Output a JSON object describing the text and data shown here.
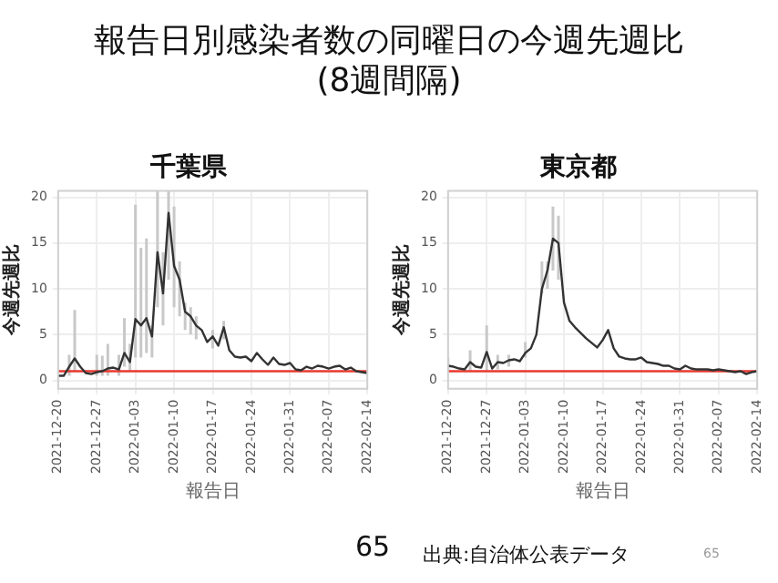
{
  "chart_data": [
    {
      "type": "other",
      "title": "報告日別感染者数の同曜日の今週先週比",
      "subtitle": "(8週間隔)"
    },
    {
      "type": "line",
      "title": "千葉県",
      "xlabel": "報告日",
      "ylabel": "今週先週比",
      "x": [
        "2021-12-20",
        "2021-12-21",
        "2021-12-22",
        "2021-12-23",
        "2021-12-24",
        "2021-12-25",
        "2021-12-26",
        "2021-12-27",
        "2021-12-28",
        "2021-12-29",
        "2021-12-30",
        "2021-12-31",
        "2022-01-01",
        "2022-01-02",
        "2022-01-03",
        "2022-01-04",
        "2022-01-05",
        "2022-01-06",
        "2022-01-07",
        "2022-01-08",
        "2022-01-09",
        "2022-01-10",
        "2022-01-11",
        "2022-01-12",
        "2022-01-13",
        "2022-01-14",
        "2022-01-15",
        "2022-01-16",
        "2022-01-17",
        "2022-01-18",
        "2022-01-19",
        "2022-01-20",
        "2022-01-21",
        "2022-01-22",
        "2022-01-23",
        "2022-01-24",
        "2022-01-25",
        "2022-01-26",
        "2022-01-27",
        "2022-01-28",
        "2022-01-29",
        "2022-01-30",
        "2022-01-31",
        "2022-02-01",
        "2022-02-02",
        "2022-02-03",
        "2022-02-04",
        "2022-02-05",
        "2022-02-06",
        "2022-02-07",
        "2022-02-08",
        "2022-02-09",
        "2022-02-10",
        "2022-02-11",
        "2022-02-12",
        "2022-02-13",
        "2022-02-14"
      ],
      "series": [
        {
          "color": "#333333",
          "values": [
            0.5,
            0.5,
            1.5,
            2.4,
            1.5,
            0.8,
            0.7,
            0.9,
            1.0,
            1.3,
            1.4,
            1.2,
            3.0,
            2.0,
            6.7,
            6.0,
            6.8,
            4.8,
            14,
            9.5,
            18.3,
            12.5,
            11,
            7.5,
            7,
            6,
            5.5,
            4.2,
            4.8,
            3.8,
            5.8,
            3.3,
            2.6,
            2.5,
            2.6,
            2.1,
            3.0,
            2.3,
            1.7,
            2.5,
            1.8,
            1.7,
            1.9,
            1.2,
            1.1,
            1.5,
            1.3,
            1.6,
            1.5,
            1.3,
            1.5,
            1.6,
            1.2,
            1.4,
            1.0,
            0.9,
            0.8
          ],
          "errors": [
            null,
            null,
            [
              0.5,
              2.8
            ],
            [
              1,
              7.7
            ],
            null,
            null,
            null,
            [
              0.5,
              2.8
            ],
            [
              0.5,
              2.7
            ],
            [
              0.5,
              4
            ],
            null,
            [
              0.5,
              2.8
            ],
            [
              1.5,
              6.8
            ],
            [
              1,
              4
            ],
            [
              2.5,
              19.2
            ],
            [
              2.5,
              14.5
            ],
            [
              3,
              15.5
            ],
            [
              2.5,
              6
            ],
            [
              8,
              20.7
            ],
            [
              6,
              14
            ],
            [
              11,
              20.7
            ],
            [
              8,
              19
            ],
            [
              7,
              13
            ],
            [
              5.5,
              8.5
            ],
            [
              5,
              8
            ],
            [
              4.5,
              7
            ],
            null,
            null,
            [
              3.5,
              5.5
            ],
            null,
            [
              4.5,
              6.5
            ],
            null,
            null,
            null,
            null,
            null,
            null,
            null,
            null,
            null,
            null,
            null,
            null,
            null,
            null,
            null,
            null,
            null,
            null,
            null,
            null,
            null,
            null,
            null,
            null,
            null,
            null
          ]
        }
      ],
      "ref_lines": [
        {
          "axis": "y",
          "value": 1,
          "color": "#e8392f"
        }
      ],
      "xlim": [
        "2021-12-20",
        "2022-02-14"
      ],
      "xticks": [
        "2021-12-20",
        "2021-12-27",
        "2022-01-03",
        "2022-01-10",
        "2022-01-17",
        "2022-01-24",
        "2022-01-31",
        "2022-02-07",
        "2022-02-14"
      ],
      "ylim": [
        -0.9,
        20.7
      ],
      "yticks": [
        0,
        5,
        10,
        15,
        20
      ],
      "grid": true
    },
    {
      "type": "line",
      "title": "東京都",
      "xlabel": "報告日",
      "ylabel": "今週先週比",
      "x": [
        "2021-12-20",
        "2021-12-21",
        "2021-12-22",
        "2021-12-23",
        "2021-12-24",
        "2021-12-25",
        "2021-12-26",
        "2021-12-27",
        "2021-12-28",
        "2021-12-29",
        "2021-12-30",
        "2021-12-31",
        "2022-01-01",
        "2022-01-02",
        "2022-01-03",
        "2022-01-04",
        "2022-01-05",
        "2022-01-06",
        "2022-01-07",
        "2022-01-08",
        "2022-01-09",
        "2022-01-10",
        "2022-01-11",
        "2022-01-12",
        "2022-01-13",
        "2022-01-14",
        "2022-01-15",
        "2022-01-16",
        "2022-01-17",
        "2022-01-18",
        "2022-01-19",
        "2022-01-20",
        "2022-01-21",
        "2022-01-22",
        "2022-01-23",
        "2022-01-24",
        "2022-01-25",
        "2022-01-26",
        "2022-01-27",
        "2022-01-28",
        "2022-01-29",
        "2022-01-30",
        "2022-01-31",
        "2022-02-01",
        "2022-02-02",
        "2022-02-03",
        "2022-02-04",
        "2022-02-05",
        "2022-02-06",
        "2022-02-07",
        "2022-02-08",
        "2022-02-09",
        "2022-02-10",
        "2022-02-11",
        "2022-02-12",
        "2022-02-13",
        "2022-02-14"
      ],
      "series": [
        {
          "color": "#333333",
          "values": [
            1.6,
            1.5,
            1.3,
            1.2,
            2.0,
            1.5,
            1.4,
            3.1,
            1.3,
            2.0,
            1.9,
            2.2,
            2.3,
            2.1,
            3.0,
            3.5,
            5.0,
            10.0,
            12.0,
            15.5,
            15.0,
            8.5,
            6.5,
            5.8,
            5.2,
            4.6,
            4.1,
            3.6,
            4.4,
            5.5,
            3.5,
            2.6,
            2.4,
            2.3,
            2.3,
            2.5,
            2.0,
            1.9,
            1.8,
            1.6,
            1.6,
            1.3,
            1.2,
            1.6,
            1.3,
            1.2,
            1.2,
            1.2,
            1.1,
            1.2,
            1.1,
            1.0,
            0.9,
            1.0,
            0.7,
            0.9,
            1.0
          ],
          "errors": [
            [
              1,
              2.5
            ],
            null,
            null,
            null,
            [
              1,
              3.3
            ],
            null,
            null,
            [
              1,
              6
            ],
            null,
            [
              1.2,
              2.8
            ],
            null,
            [
              1.5,
              2.8
            ],
            null,
            null,
            [
              2.5,
              4.2
            ],
            null,
            null,
            [
              9.5,
              13
            ],
            [
              10,
              13
            ],
            [
              12,
              19
            ],
            [
              11,
              18
            ],
            null,
            null,
            null,
            null,
            null,
            null,
            null,
            null,
            null,
            null,
            null,
            null,
            null,
            null,
            null,
            null,
            null,
            null,
            null,
            null,
            null,
            null,
            null,
            null,
            null,
            null,
            null,
            null,
            null,
            null,
            null,
            null,
            null,
            null,
            null,
            null
          ]
        }
      ],
      "ref_lines": [
        {
          "axis": "y",
          "value": 1,
          "color": "#e8392f"
        }
      ],
      "xlim": [
        "2021-12-20",
        "2022-02-14"
      ],
      "xticks": [
        "2021-12-20",
        "2021-12-27",
        "2022-01-03",
        "2022-01-10",
        "2022-01-17",
        "2022-01-24",
        "2022-01-31",
        "2022-02-07",
        "2022-02-14"
      ],
      "ylim": [
        -0.9,
        20.7
      ],
      "yticks": [
        0,
        5,
        10,
        15,
        20
      ],
      "grid": true
    },
    {
      "type": "other",
      "annotations": [
        "65",
        "出典:自治体公表データ",
        "65"
      ]
    }
  ]
}
